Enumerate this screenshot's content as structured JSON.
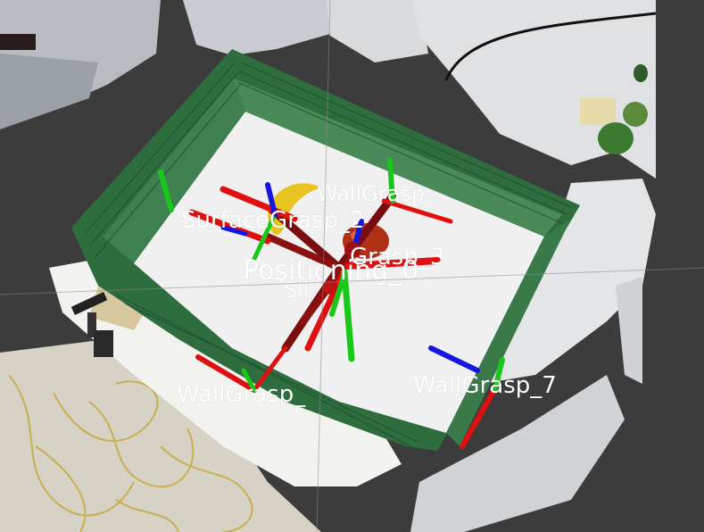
{
  "viewport": {
    "background_color": "#3c3c3c",
    "colors": {
      "x_axis": "#e01010",
      "y_axis": "#18c818",
      "z_axis": "#1616e0",
      "crate": "#2e6e3e",
      "floor": "#f0f0f0"
    }
  },
  "grasp_labels": {
    "wall_grasp_top": "WallGrasp_",
    "surface_grasp": "SurfaceGrasp_2",
    "grasp_3": "Grasp_3",
    "positioning": "Positioning_0",
    "slide": "Sli",
    "wall_grasp_left": "WallGrasp_",
    "wall_grasp_7": "WallGrasp_7"
  }
}
